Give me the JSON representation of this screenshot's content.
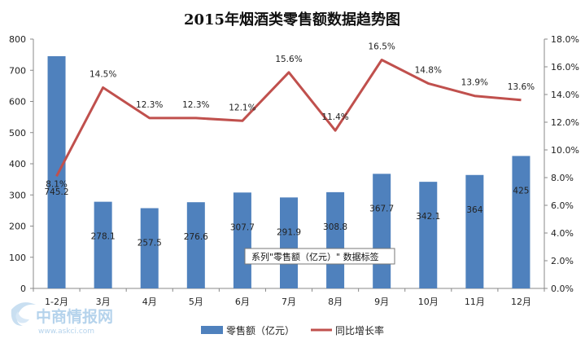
{
  "chart_data": {
    "type": "bar",
    "title": "2015年烟酒类零售额数据趋势图",
    "categories": [
      "1-2月",
      "3月",
      "4月",
      "5月",
      "6月",
      "7月",
      "8月",
      "9月",
      "10月",
      "11月",
      "12月"
    ],
    "series": [
      {
        "name": "零售额（亿元）",
        "type": "bar",
        "axis": "left",
        "color": "#4f81bd",
        "values": [
          745.2,
          278.1,
          257.5,
          276.6,
          307.7,
          291.9,
          308.8,
          367.7,
          342.1,
          364,
          425
        ],
        "labels": [
          "745.2",
          "278.1",
          "257.5",
          "276.6",
          "307.7",
          "291.9",
          "308.8",
          "367.7",
          "342.1",
          "364",
          "425"
        ]
      },
      {
        "name": "同比增长率",
        "type": "line",
        "axis": "right",
        "color": "#c0504d",
        "values": [
          8.1,
          14.5,
          12.3,
          12.3,
          12.1,
          15.6,
          11.4,
          16.5,
          14.8,
          13.9,
          13.6
        ],
        "labels": [
          "8.1%",
          "14.5%",
          "12.3%",
          "12.3%",
          "12.1%",
          "15.6%",
          "11.4%",
          "16.5%",
          "14.8%",
          "13.9%",
          "13.6%"
        ]
      }
    ],
    "y_left": {
      "min": 0,
      "max": 800,
      "ticks": [
        "0",
        "100",
        "200",
        "300",
        "400",
        "500",
        "600",
        "700",
        "800"
      ]
    },
    "y_right": {
      "min": 0,
      "max": 18,
      "ticks": [
        "0.0%",
        "2.0%",
        "4.0%",
        "6.0%",
        "8.0%",
        "10.0%",
        "12.0%",
        "14.0%",
        "16.0%",
        "18.0%"
      ]
    },
    "grid": false,
    "legend": "bottom",
    "legend_items": [
      "零售额（亿元）",
      "同比增长率"
    ],
    "tooltip": "系列\"零售额（亿元）\" 数据标签"
  },
  "watermark": {
    "main": "中商情报网",
    "sub": "www.askci.com",
    "logo_icon": "swirl-logo-icon"
  }
}
